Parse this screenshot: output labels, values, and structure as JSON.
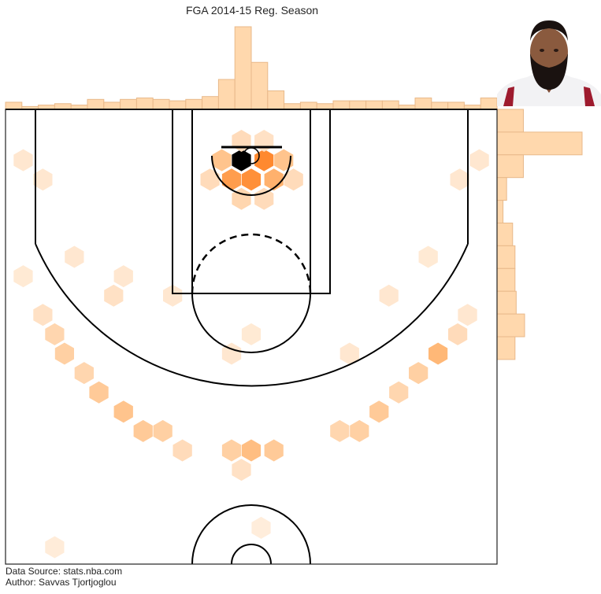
{
  "title": "FGA 2014-15 Reg. Season",
  "credits": {
    "source": "Data Source: stats.nba.com",
    "author": "Author: Savvas Tjortjoglou"
  },
  "colors": {
    "hist_fill": "#ffd8ad",
    "hist_edge": "#e8b98a",
    "hex_light": "#fff3e6",
    "hex_mid": "#ffb877",
    "hex_dark": "#ff7510",
    "court_line": "#000000"
  },
  "chart_data": {
    "type": "hexbin",
    "title": "FGA 2014-15 Reg. Season",
    "x_range": [
      -250,
      250
    ],
    "y_range": [
      422.5,
      -47.5
    ],
    "top_histogram": {
      "bins": 30,
      "values": [
        5,
        2,
        3,
        4,
        3,
        7,
        5,
        7,
        8,
        7,
        6,
        7,
        9,
        21,
        58,
        33,
        13,
        4,
        5,
        4,
        6,
        6,
        6,
        6,
        3,
        8,
        5,
        5,
        3,
        8
      ]
    },
    "right_histogram": {
      "bins": 20,
      "values": [
        22,
        71,
        22,
        8,
        5,
        13,
        15,
        15,
        16,
        23,
        15,
        0,
        0,
        0,
        0,
        0,
        0,
        0,
        0,
        0
      ]
    },
    "hexbins": [
      {
        "x": -10,
        "y": 5,
        "level": 1.0
      },
      {
        "x": 13,
        "y": 5,
        "level": 0.85
      },
      {
        "x": -20,
        "y": 25,
        "level": 0.7
      },
      {
        "x": 0,
        "y": 25,
        "level": 0.8
      },
      {
        "x": 23,
        "y": 25,
        "level": 0.55
      },
      {
        "x": -30,
        "y": 5,
        "level": 0.4
      },
      {
        "x": 33,
        "y": 5,
        "level": 0.4
      },
      {
        "x": -42,
        "y": 25,
        "level": 0.2
      },
      {
        "x": 43,
        "y": 25,
        "level": 0.2
      },
      {
        "x": -10,
        "y": 45,
        "level": 0.25
      },
      {
        "x": 13,
        "y": 45,
        "level": 0.2
      },
      {
        "x": -10,
        "y": -15,
        "level": 0.2
      },
      {
        "x": 13,
        "y": -15,
        "level": 0.15
      },
      {
        "x": -232,
        "y": 5,
        "level": 0.1
      },
      {
        "x": -212,
        "y": 25,
        "level": 0.1
      },
      {
        "x": 232,
        "y": 5,
        "level": 0.1
      },
      {
        "x": 212,
        "y": 25,
        "level": 0.1
      },
      {
        "x": -232,
        "y": 125,
        "level": 0.08
      },
      {
        "x": -212,
        "y": 165,
        "level": 0.15
      },
      {
        "x": -200,
        "y": 185,
        "level": 0.25
      },
      {
        "x": -190,
        "y": 205,
        "level": 0.3
      },
      {
        "x": -170,
        "y": 225,
        "level": 0.25
      },
      {
        "x": -155,
        "y": 245,
        "level": 0.35
      },
      {
        "x": -130,
        "y": 265,
        "level": 0.4
      },
      {
        "x": -110,
        "y": 285,
        "level": 0.35
      },
      {
        "x": -90,
        "y": 285,
        "level": 0.3
      },
      {
        "x": -70,
        "y": 305,
        "level": 0.2
      },
      {
        "x": -20,
        "y": 305,
        "level": 0.3
      },
      {
        "x": 0,
        "y": 305,
        "level": 0.45
      },
      {
        "x": 23,
        "y": 305,
        "level": 0.35
      },
      {
        "x": -10,
        "y": 325,
        "level": 0.15
      },
      {
        "x": 90,
        "y": 285,
        "level": 0.25
      },
      {
        "x": 110,
        "y": 285,
        "level": 0.3
      },
      {
        "x": 130,
        "y": 265,
        "level": 0.35
      },
      {
        "x": 150,
        "y": 245,
        "level": 0.25
      },
      {
        "x": 170,
        "y": 225,
        "level": 0.3
      },
      {
        "x": 190,
        "y": 205,
        "level": 0.5
      },
      {
        "x": 210,
        "y": 185,
        "level": 0.2
      },
      {
        "x": 220,
        "y": 165,
        "level": 0.1
      },
      {
        "x": -80,
        "y": 145,
        "level": 0.1
      },
      {
        "x": -140,
        "y": 145,
        "level": 0.15
      },
      {
        "x": -130,
        "y": 125,
        "level": 0.1
      },
      {
        "x": -20,
        "y": 205,
        "level": 0.1
      },
      {
        "x": 0,
        "y": 185,
        "level": 0.08
      },
      {
        "x": 100,
        "y": 205,
        "level": 0.1
      },
      {
        "x": 140,
        "y": 145,
        "level": 0.1
      },
      {
        "x": -180,
        "y": 105,
        "level": 0.1
      },
      {
        "x": 180,
        "y": 105,
        "level": 0.08
      },
      {
        "x": -200,
        "y": 405,
        "level": 0.06
      },
      {
        "x": 10,
        "y": 385,
        "level": 0.05
      }
    ]
  }
}
